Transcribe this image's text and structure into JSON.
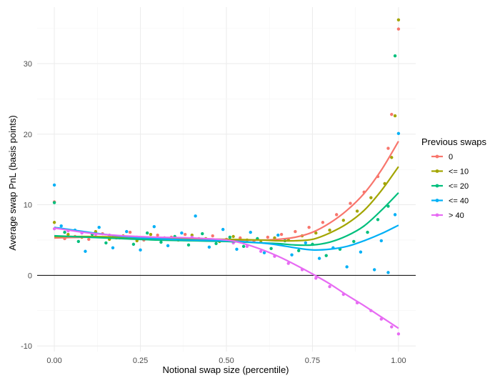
{
  "chart_data": {
    "type": "scatter",
    "xlabel": "Notional swap size (percentile)",
    "ylabel": "Average swap PnL (basis points)",
    "xlim": [
      -0.05,
      1.05
    ],
    "ylim": [
      -10.8,
      38.0
    ],
    "x_ticks": [
      0.0,
      0.25,
      0.5,
      0.75,
      1.0
    ],
    "x_tick_labels": [
      "0.00",
      "0.25",
      "0.50",
      "0.75",
      "1.00"
    ],
    "y_ticks": [
      -10,
      0,
      10,
      20,
      30
    ],
    "y_tick_labels": [
      "-10",
      "0",
      "10",
      "20",
      "30"
    ],
    "hline": 0,
    "grid": true,
    "legend": {
      "title": "Previous swaps",
      "position": "right"
    },
    "series": [
      {
        "name": "0",
        "color": "#F8766D",
        "points": [
          [
            0.0,
            10.4
          ],
          [
            0.03,
            5.2
          ],
          [
            0.06,
            5.5
          ],
          [
            0.1,
            5.1
          ],
          [
            0.14,
            5.9
          ],
          [
            0.18,
            5.3
          ],
          [
            0.22,
            6.1
          ],
          [
            0.26,
            5.0
          ],
          [
            0.3,
            5.7
          ],
          [
            0.34,
            5.4
          ],
          [
            0.38,
            5.8
          ],
          [
            0.42,
            5.2
          ],
          [
            0.46,
            5.6
          ],
          [
            0.5,
            5.1
          ],
          [
            0.54,
            5.3
          ],
          [
            0.58,
            4.9
          ],
          [
            0.62,
            5.4
          ],
          [
            0.66,
            5.8
          ],
          [
            0.7,
            6.2
          ],
          [
            0.74,
            6.8
          ],
          [
            0.78,
            7.5
          ],
          [
            0.82,
            8.6
          ],
          [
            0.86,
            10.2
          ],
          [
            0.9,
            11.8
          ],
          [
            0.94,
            14.0
          ],
          [
            0.97,
            18.0
          ],
          [
            0.98,
            22.8
          ],
          [
            1.0,
            34.9
          ]
        ],
        "trend": [
          [
            0.0,
            5.3
          ],
          [
            0.1,
            5.4
          ],
          [
            0.2,
            5.3
          ],
          [
            0.3,
            5.2
          ],
          [
            0.4,
            5.1
          ],
          [
            0.5,
            5.0
          ],
          [
            0.6,
            5.0
          ],
          [
            0.65,
            5.1
          ],
          [
            0.7,
            5.4
          ],
          [
            0.75,
            6.1
          ],
          [
            0.8,
            7.4
          ],
          [
            0.85,
            9.2
          ],
          [
            0.9,
            11.6
          ],
          [
            0.95,
            14.9
          ],
          [
            1.0,
            19.0
          ]
        ]
      },
      {
        "name": "<= 10",
        "color": "#A3A500",
        "points": [
          [
            0.0,
            7.5
          ],
          [
            0.04,
            5.8
          ],
          [
            0.08,
            5.4
          ],
          [
            0.12,
            6.2
          ],
          [
            0.16,
            5.1
          ],
          [
            0.2,
            5.6
          ],
          [
            0.24,
            4.9
          ],
          [
            0.28,
            5.8
          ],
          [
            0.32,
            5.3
          ],
          [
            0.36,
            5.0
          ],
          [
            0.4,
            5.7
          ],
          [
            0.44,
            5.2
          ],
          [
            0.48,
            4.8
          ],
          [
            0.52,
            5.5
          ],
          [
            0.56,
            5.0
          ],
          [
            0.6,
            4.7
          ],
          [
            0.64,
            5.3
          ],
          [
            0.68,
            5.0
          ],
          [
            0.72,
            5.6
          ],
          [
            0.76,
            6.0
          ],
          [
            0.8,
            6.4
          ],
          [
            0.84,
            7.8
          ],
          [
            0.88,
            9.1
          ],
          [
            0.92,
            11.0
          ],
          [
            0.96,
            13.0
          ],
          [
            0.98,
            16.7
          ],
          [
            0.99,
            22.6
          ],
          [
            1.0,
            36.2
          ]
        ],
        "trend": [
          [
            0.0,
            5.5
          ],
          [
            0.1,
            5.5
          ],
          [
            0.2,
            5.4
          ],
          [
            0.3,
            5.3
          ],
          [
            0.4,
            5.2
          ],
          [
            0.5,
            5.1
          ],
          [
            0.6,
            5.0
          ],
          [
            0.65,
            4.9
          ],
          [
            0.7,
            4.9
          ],
          [
            0.75,
            5.1
          ],
          [
            0.8,
            6.0
          ],
          [
            0.85,
            7.3
          ],
          [
            0.9,
            9.2
          ],
          [
            0.95,
            12.0
          ],
          [
            1.0,
            15.4
          ]
        ]
      },
      {
        "name": "<= 20",
        "color": "#00BF7D",
        "points": [
          [
            0.0,
            10.3
          ],
          [
            0.03,
            6.1
          ],
          [
            0.07,
            4.8
          ],
          [
            0.11,
            5.8
          ],
          [
            0.15,
            4.6
          ],
          [
            0.19,
            5.3
          ],
          [
            0.23,
            4.4
          ],
          [
            0.27,
            6.0
          ],
          [
            0.31,
            4.7
          ],
          [
            0.35,
            5.5
          ],
          [
            0.39,
            4.3
          ],
          [
            0.43,
            5.9
          ],
          [
            0.47,
            4.5
          ],
          [
            0.51,
            5.4
          ],
          [
            0.55,
            4.1
          ],
          [
            0.59,
            5.2
          ],
          [
            0.63,
            3.8
          ],
          [
            0.67,
            4.9
          ],
          [
            0.71,
            3.5
          ],
          [
            0.75,
            4.4
          ],
          [
            0.79,
            2.8
          ],
          [
            0.83,
            3.7
          ],
          [
            0.87,
            4.8
          ],
          [
            0.91,
            6.1
          ],
          [
            0.94,
            7.9
          ],
          [
            0.97,
            9.8
          ],
          [
            0.99,
            31.1
          ]
        ],
        "trend": [
          [
            0.0,
            5.6
          ],
          [
            0.1,
            5.4
          ],
          [
            0.2,
            5.2
          ],
          [
            0.3,
            5.0
          ],
          [
            0.4,
            4.9
          ],
          [
            0.5,
            4.8
          ],
          [
            0.6,
            4.6
          ],
          [
            0.65,
            4.5
          ],
          [
            0.7,
            4.3
          ],
          [
            0.75,
            4.3
          ],
          [
            0.8,
            4.7
          ],
          [
            0.85,
            5.6
          ],
          [
            0.9,
            7.0
          ],
          [
            0.95,
            9.2
          ],
          [
            1.0,
            11.7
          ]
        ]
      },
      {
        "name": "<= 40",
        "color": "#00B0F6",
        "points": [
          [
            0.0,
            12.8
          ],
          [
            0.02,
            7.0
          ],
          [
            0.06,
            6.4
          ],
          [
            0.09,
            3.4
          ],
          [
            0.13,
            6.8
          ],
          [
            0.17,
            3.9
          ],
          [
            0.21,
            6.2
          ],
          [
            0.25,
            3.6
          ],
          [
            0.29,
            6.9
          ],
          [
            0.33,
            4.2
          ],
          [
            0.37,
            6.0
          ],
          [
            0.41,
            8.4
          ],
          [
            0.45,
            4.0
          ],
          [
            0.49,
            6.5
          ],
          [
            0.53,
            3.7
          ],
          [
            0.57,
            6.1
          ],
          [
            0.61,
            3.2
          ],
          [
            0.65,
            5.7
          ],
          [
            0.69,
            2.9
          ],
          [
            0.73,
            4.6
          ],
          [
            0.77,
            2.4
          ],
          [
            0.81,
            3.9
          ],
          [
            0.85,
            1.2
          ],
          [
            0.89,
            3.3
          ],
          [
            0.93,
            0.8
          ],
          [
            0.95,
            4.9
          ],
          [
            0.97,
            0.4
          ],
          [
            0.99,
            8.6
          ],
          [
            1.0,
            20.1
          ]
        ],
        "trend": [
          [
            0.0,
            6.8
          ],
          [
            0.1,
            6.1
          ],
          [
            0.2,
            5.5
          ],
          [
            0.3,
            5.2
          ],
          [
            0.4,
            5.0
          ],
          [
            0.5,
            4.9
          ],
          [
            0.6,
            4.6
          ],
          [
            0.65,
            4.3
          ],
          [
            0.7,
            3.9
          ],
          [
            0.75,
            3.6
          ],
          [
            0.8,
            3.7
          ],
          [
            0.85,
            4.1
          ],
          [
            0.9,
            4.9
          ],
          [
            0.95,
            5.9
          ],
          [
            1.0,
            7.1
          ]
        ]
      },
      {
        "name": "> 40",
        "color": "#E76BF3",
        "points": [
          [
            0.0,
            6.6
          ],
          [
            0.04,
            6.3
          ],
          [
            0.08,
            6.0
          ],
          [
            0.12,
            5.8
          ],
          [
            0.16,
            5.7
          ],
          [
            0.2,
            5.5
          ],
          [
            0.24,
            5.4
          ],
          [
            0.28,
            5.3
          ],
          [
            0.32,
            5.3
          ],
          [
            0.36,
            5.2
          ],
          [
            0.4,
            5.4
          ],
          [
            0.44,
            5.1
          ],
          [
            0.48,
            5.0
          ],
          [
            0.52,
            4.6
          ],
          [
            0.56,
            4.1
          ],
          [
            0.6,
            3.4
          ],
          [
            0.64,
            2.7
          ],
          [
            0.68,
            1.7
          ],
          [
            0.72,
            0.8
          ],
          [
            0.76,
            -0.4
          ],
          [
            0.8,
            -1.6
          ],
          [
            0.84,
            -2.7
          ],
          [
            0.88,
            -3.9
          ],
          [
            0.92,
            -5.0
          ],
          [
            0.95,
            -6.2
          ],
          [
            0.98,
            -7.3
          ],
          [
            1.0,
            -8.3
          ]
        ],
        "trend": [
          [
            0.0,
            6.7
          ],
          [
            0.1,
            6.0
          ],
          [
            0.2,
            5.6
          ],
          [
            0.3,
            5.4
          ],
          [
            0.4,
            5.3
          ],
          [
            0.5,
            5.0
          ],
          [
            0.55,
            4.5
          ],
          [
            0.6,
            3.7
          ],
          [
            0.65,
            2.7
          ],
          [
            0.7,
            1.5
          ],
          [
            0.75,
            0.2
          ],
          [
            0.8,
            -1.2
          ],
          [
            0.85,
            -2.8
          ],
          [
            0.9,
            -4.3
          ],
          [
            0.95,
            -5.9
          ],
          [
            1.0,
            -7.5
          ]
        ]
      }
    ]
  }
}
